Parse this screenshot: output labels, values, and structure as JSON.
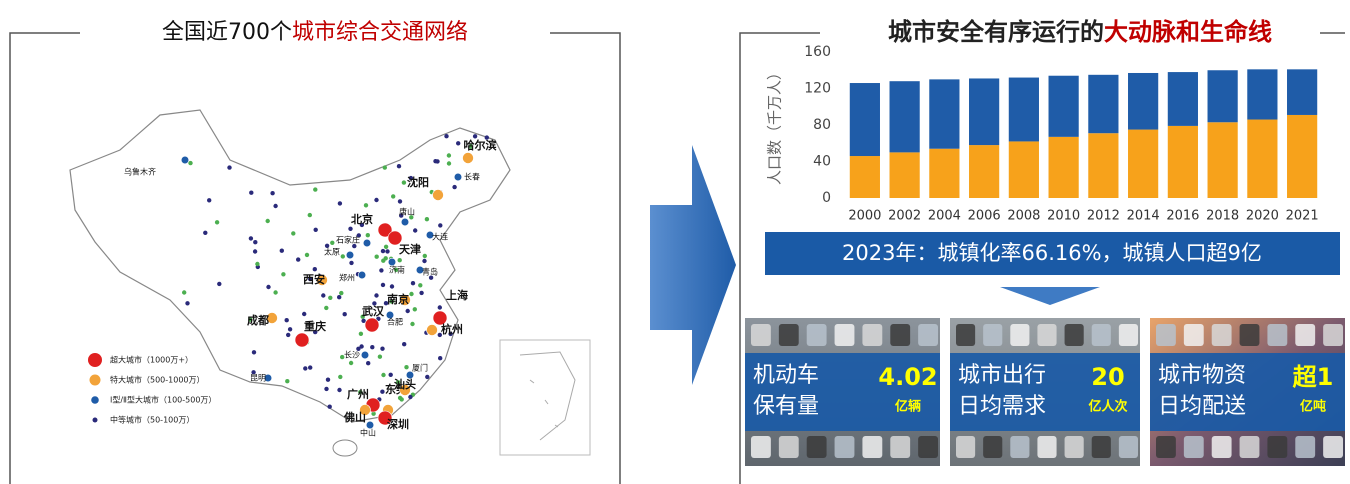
{
  "left": {
    "title": "全国近700个",
    "title_highlight": "城市综合交通网络",
    "legend": [
      "超大城市（1000万+）",
      "特大城市（500-1000万）",
      "Ⅰ型/Ⅱ型大城市（100-500万）",
      "中等城市（50-100万）"
    ],
    "cities": [
      {
        "label": "乌鲁木齐",
        "level": 2
      },
      {
        "label": "哈尔滨",
        "level": 1
      },
      {
        "label": "长春",
        "level": 2
      },
      {
        "label": "沈阳",
        "level": 1
      },
      {
        "label": "北京",
        "level": 0
      },
      {
        "label": "天津",
        "level": 0
      },
      {
        "label": "唐山",
        "level": 2
      },
      {
        "label": "大连",
        "level": 2
      },
      {
        "label": "石家庄",
        "level": 2
      },
      {
        "label": "太原",
        "level": 2
      },
      {
        "label": "济南",
        "level": 2
      },
      {
        "label": "青岛",
        "level": 2
      },
      {
        "label": "郑州",
        "level": 2
      },
      {
        "label": "西安",
        "level": 1
      },
      {
        "label": "南京",
        "level": 1
      },
      {
        "label": "上海",
        "level": 0
      },
      {
        "label": "合肥",
        "level": 2
      },
      {
        "label": "杭州",
        "level": 1
      },
      {
        "label": "武汉",
        "level": 0
      },
      {
        "label": "成都",
        "level": 1
      },
      {
        "label": "重庆",
        "level": 0
      },
      {
        "label": "长沙",
        "level": 2
      },
      {
        "label": "厦门",
        "level": 2
      },
      {
        "label": "昆明",
        "level": 2
      },
      {
        "label": "广州",
        "level": 0
      },
      {
        "label": "东莞",
        "level": 1
      },
      {
        "label": "深圳",
        "level": 0
      },
      {
        "label": "佛山",
        "level": 1
      },
      {
        "label": "汕头",
        "level": 1
      },
      {
        "label": "中山",
        "level": 2
      }
    ]
  },
  "chart_data": {
    "type": "stacked_bar",
    "title": "城市安全有序运行的",
    "title_highlight": "大动脉和生命线",
    "y_label": "人口数（千万人）",
    "categories": [
      "2000",
      "2002",
      "2004",
      "2006",
      "2008",
      "2010",
      "2012",
      "2014",
      "2016",
      "2018",
      "2020",
      "2021"
    ],
    "series": [
      {
        "color": "#f7a21b",
        "values": [
          46,
          50,
          54,
          58,
          62,
          67,
          71,
          75,
          79,
          83,
          86,
          91
        ]
      },
      {
        "color": "#1f5ca8",
        "values": [
          80,
          78,
          76,
          73,
          70,
          67,
          64,
          62,
          59,
          57,
          55,
          50
        ]
      }
    ],
    "ylim": [
      0,
      160
    ],
    "yticks": [
      0,
      40,
      80,
      120,
      160
    ]
  },
  "banner": "2023年：城镇化率66.16%，城镇人口超9亿",
  "cards": [
    {
      "lines": [
        "机动车",
        "保有量"
      ],
      "number": "4.02",
      "unit": "亿辆"
    },
    {
      "lines": [
        "城市出行",
        "日均需求"
      ],
      "number": "20",
      "unit": "亿人次"
    },
    {
      "lines": [
        "城市物资",
        "日均配送"
      ],
      "number": "超1",
      "unit": "亿吨"
    }
  ]
}
